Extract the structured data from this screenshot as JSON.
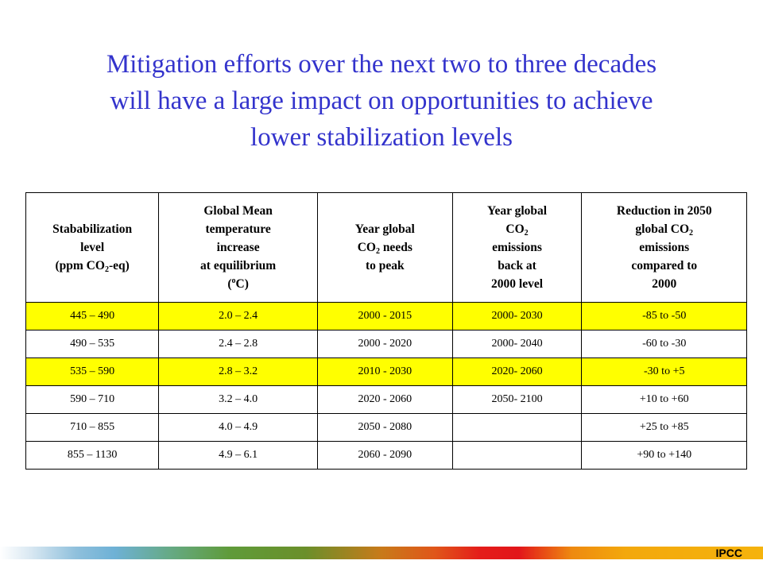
{
  "title": {
    "line1": "Mitigation efforts over the next two to three decades",
    "line2": "will have a large impact on opportunities to achieve",
    "line3": "lower stabilization levels"
  },
  "table": {
    "headers": {
      "c1": {
        "l1": "Stababilization",
        "l2": "level",
        "l3a": "(ppm CO",
        "l3sub": "2",
        "l3b": "-eq)"
      },
      "c2": {
        "l1": "Global Mean",
        "l2": "temperature",
        "l3": "increase",
        "l4": "at equilibrium",
        "l5a": "(",
        "l5sup": "o",
        "l5b": "C)"
      },
      "c3": {
        "l1": "Year global",
        "l2a": "CO",
        "l2sub": "2",
        "l2b": " needs",
        "l3": "to peak"
      },
      "c4": {
        "l1": "Year global",
        "l2a": "CO",
        "l2sub": "2",
        "l3": "emissions",
        "l4": "back at",
        "l5": "2000 level"
      },
      "c5": {
        "l1": "Reduction in 2050",
        "l2a": "global CO",
        "l2sub": "2",
        "l3": "emissions",
        "l4": "compared to",
        "l5": "2000"
      }
    },
    "rows": [
      {
        "level": "445 – 490",
        "temp": "2.0 – 2.4",
        "peak": "2000 - 2015",
        "back": "2000- 2030",
        "reduction": "-85 to -50",
        "highlight": true
      },
      {
        "level": "490 – 535",
        "temp": "2.4 – 2.8",
        "peak": "2000 - 2020",
        "back": "2000- 2040",
        "reduction": "-60 to -30",
        "highlight": false
      },
      {
        "level": "535 – 590",
        "temp": "2.8 – 3.2",
        "peak": "2010 - 2030",
        "back": "2020- 2060",
        "reduction": "-30 to +5",
        "highlight": true
      },
      {
        "level": "590 – 710",
        "temp": "3.2 – 4.0",
        "peak": "2020 - 2060",
        "back": "2050- 2100",
        "reduction": "+10 to +60",
        "highlight": false
      },
      {
        "level": "710 – 855",
        "temp": "4.0 – 4.9",
        "peak": "2050 - 2080",
        "back": "",
        "reduction": "+25 to +85",
        "highlight": false
      },
      {
        "level": "855 – 1130",
        "temp": "4.9 – 6.1",
        "peak": "2060 - 2090",
        "back": "",
        "reduction": "+90 to +140",
        "highlight": false
      }
    ]
  },
  "footer": {
    "brand": "IPCC"
  },
  "colors": {
    "title": "#3333cc",
    "highlight": "#ffff00"
  }
}
